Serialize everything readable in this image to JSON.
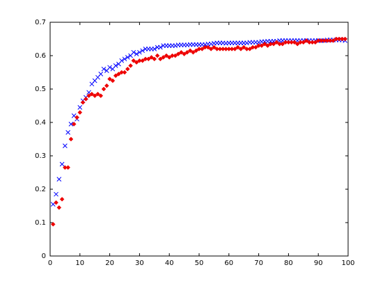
{
  "chart_data": {
    "type": "scatter",
    "x": [
      1,
      2,
      3,
      4,
      5,
      6,
      7,
      8,
      9,
      10,
      11,
      12,
      13,
      14,
      15,
      16,
      17,
      18,
      19,
      20,
      21,
      22,
      23,
      24,
      25,
      26,
      27,
      28,
      29,
      30,
      31,
      32,
      33,
      34,
      35,
      36,
      37,
      38,
      39,
      40,
      41,
      42,
      43,
      44,
      45,
      46,
      47,
      48,
      49,
      50,
      51,
      52,
      53,
      54,
      55,
      56,
      57,
      58,
      59,
      60,
      61,
      62,
      63,
      64,
      65,
      66,
      67,
      68,
      69,
      70,
      71,
      72,
      73,
      74,
      75,
      76,
      77,
      78,
      79,
      80,
      81,
      82,
      83,
      84,
      85,
      86,
      87,
      88,
      89,
      90,
      91,
      92,
      93,
      94,
      95,
      96,
      97,
      98,
      99
    ],
    "series": [
      {
        "color": "#0000ff",
        "marker": "x",
        "values": [
          0.155,
          0.185,
          0.23,
          0.275,
          0.33,
          0.37,
          0.395,
          0.42,
          0.41,
          0.445,
          0.465,
          0.475,
          0.49,
          0.515,
          0.525,
          0.535,
          0.545,
          0.56,
          0.555,
          0.565,
          0.56,
          0.57,
          0.575,
          0.585,
          0.59,
          0.595,
          0.6,
          0.61,
          0.605,
          0.61,
          0.615,
          0.62,
          0.62,
          0.62,
          0.62,
          0.625,
          0.625,
          0.63,
          0.63,
          0.63,
          0.63,
          0.63,
          0.632,
          0.632,
          0.632,
          0.632,
          0.633,
          0.633,
          0.633,
          0.633,
          0.633,
          0.633,
          0.635,
          0.635,
          0.637,
          0.638,
          0.638,
          0.638,
          0.637,
          0.638,
          0.638,
          0.638,
          0.638,
          0.638,
          0.638,
          0.638,
          0.64,
          0.64,
          0.64,
          0.64,
          0.642,
          0.642,
          0.643,
          0.643,
          0.643,
          0.643,
          0.645,
          0.645,
          0.645,
          0.645,
          0.645,
          0.645,
          0.645,
          0.645,
          0.645,
          0.645,
          0.645,
          0.645,
          0.645,
          0.645,
          0.645,
          0.645,
          0.647,
          0.647,
          0.647,
          0.647,
          0.647,
          0.647,
          0.645
        ]
      },
      {
        "color": "#ee0000",
        "marker": "diamond",
        "values": [
          0.095,
          0.16,
          0.145,
          0.17,
          0.265,
          0.265,
          0.35,
          0.395,
          0.415,
          0.43,
          0.46,
          0.47,
          0.48,
          0.485,
          0.48,
          0.485,
          0.48,
          0.5,
          0.51,
          0.53,
          0.525,
          0.54,
          0.545,
          0.55,
          0.55,
          0.56,
          0.57,
          0.585,
          0.58,
          0.585,
          0.585,
          0.59,
          0.59,
          0.595,
          0.59,
          0.6,
          0.59,
          0.595,
          0.6,
          0.595,
          0.6,
          0.6,
          0.605,
          0.61,
          0.605,
          0.61,
          0.615,
          0.61,
          0.615,
          0.62,
          0.62,
          0.625,
          0.625,
          0.62,
          0.625,
          0.62,
          0.62,
          0.62,
          0.62,
          0.62,
          0.62,
          0.62,
          0.625,
          0.62,
          0.625,
          0.62,
          0.62,
          0.625,
          0.625,
          0.63,
          0.63,
          0.635,
          0.63,
          0.635,
          0.635,
          0.64,
          0.635,
          0.635,
          0.64,
          0.64,
          0.64,
          0.64,
          0.635,
          0.64,
          0.64,
          0.645,
          0.64,
          0.64,
          0.64,
          0.645,
          0.645,
          0.645,
          0.645,
          0.645,
          0.645,
          0.65,
          0.65,
          0.65,
          0.65
        ]
      }
    ],
    "xlim": [
      0,
      100
    ],
    "xticks": [
      0,
      10,
      20,
      30,
      40,
      50,
      60,
      70,
      80,
      90,
      100
    ],
    "ylim": [
      0,
      0.7
    ],
    "yticks": [
      0,
      0.1,
      0.2,
      0.3,
      0.4,
      0.5,
      0.6,
      0.7
    ],
    "grid": false
  }
}
